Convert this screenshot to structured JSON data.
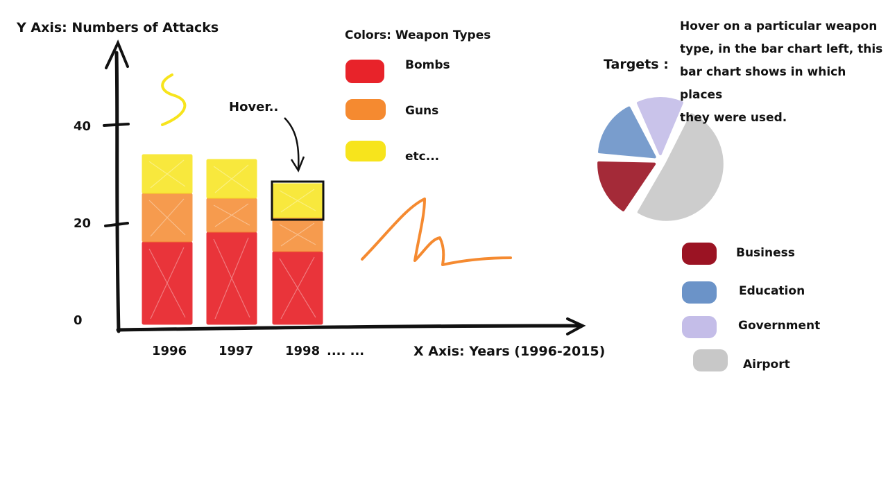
{
  "y_axis_label": "Y Axis:  Numbers of Attacks",
  "x_axis_label": "X Axis: Years (1996-2015)",
  "colors_title": "Colors: Weapon Types",
  "hover_label": "Hover..",
  "targets_title": "Targets :",
  "hover_note": [
    "Hover on a particular weapon",
    "type, in the bar chart left, this",
    "bar chart shows in which places",
    "they were used."
  ],
  "x_ellipsis": ".... ...",
  "weapon_legend": [
    {
      "label": "Bombs",
      "color": "#e8232a"
    },
    {
      "label": "Guns",
      "color": "#f58a30"
    },
    {
      "label": "etc...",
      "color": "#f7e41c"
    }
  ],
  "target_legend": [
    {
      "label": "Business",
      "color": "#9b1323"
    },
    {
      "label": "Education",
      "color": "#6b93c8"
    },
    {
      "label": "Government",
      "color": "#c4bde8"
    },
    {
      "label": "Airport",
      "color": "#c8c8c8"
    }
  ],
  "chart_data": {
    "type": "bar",
    "stacked": true,
    "categories": [
      "1996",
      "1997",
      "1998"
    ],
    "series": [
      {
        "name": "Bombs",
        "values": [
          17,
          19,
          15
        ]
      },
      {
        "name": "Guns",
        "values": [
          10,
          7,
          7
        ]
      },
      {
        "name": "etc...",
        "values": [
          8,
          8,
          7
        ]
      }
    ],
    "yticks": [
      0,
      20,
      40
    ],
    "ylim": [
      0,
      55
    ],
    "highlighted_category": "1998",
    "colors": [
      "#e8232a",
      "#f58a30",
      "#f7e41c"
    ]
  },
  "pie_data": {
    "type": "pie",
    "labels": [
      "Business",
      "Education",
      "Government",
      "Airport"
    ],
    "values": [
      17,
      17,
      14,
      52
    ],
    "colors": [
      "#9b1323",
      "#6b93c8",
      "#c4bde8",
      "#c8c8c8"
    ]
  }
}
